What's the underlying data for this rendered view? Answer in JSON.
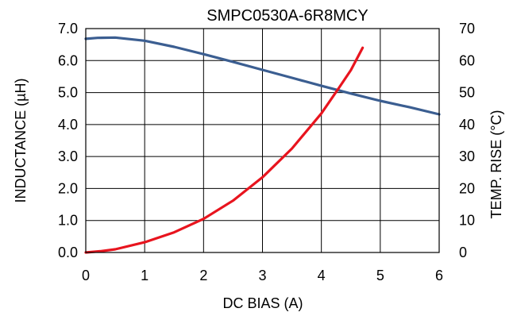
{
  "chart_data": {
    "type": "line",
    "title": "SMPC0530A-6R8MCY",
    "xlabel": "DC BIAS (A)",
    "ylabel": "INDUCTANCE (µH)",
    "y2label": "TEMP. RISE (°C)",
    "xlim": [
      0,
      6
    ],
    "ylim": [
      0,
      7
    ],
    "y2lim": [
      0,
      70
    ],
    "grid": true,
    "xticks": [
      "0",
      "1",
      "2",
      "3",
      "4",
      "5",
      "6"
    ],
    "yticks": [
      "0.0",
      "1.0",
      "2.0",
      "3.0",
      "4.0",
      "5.0",
      "6.0",
      "7.0"
    ],
    "y2ticks": [
      "0",
      "10",
      "20",
      "30",
      "40",
      "50",
      "60",
      "70"
    ],
    "series": [
      {
        "axis": "left",
        "color": "#3B5E91",
        "x": [
          0,
          0.2,
          0.5,
          1.0,
          1.5,
          2.0,
          2.5,
          3.0,
          3.5,
          4.0,
          4.5,
          5.0,
          5.5,
          6.0
        ],
        "y": [
          6.68,
          6.71,
          6.72,
          6.62,
          6.43,
          6.2,
          5.96,
          5.71,
          5.46,
          5.21,
          4.97,
          4.74,
          4.54,
          4.32
        ]
      },
      {
        "axis": "right",
        "color": "#E8141E",
        "x": [
          0,
          0.25,
          0.5,
          1.0,
          1.5,
          2.0,
          2.5,
          3.0,
          3.5,
          4.0,
          4.3,
          4.5,
          4.7
        ],
        "y": [
          0,
          0.4,
          1.0,
          3.2,
          6.3,
          10.5,
          16.2,
          23.5,
          32.5,
          43.5,
          51.5,
          57,
          64
        ]
      }
    ]
  }
}
